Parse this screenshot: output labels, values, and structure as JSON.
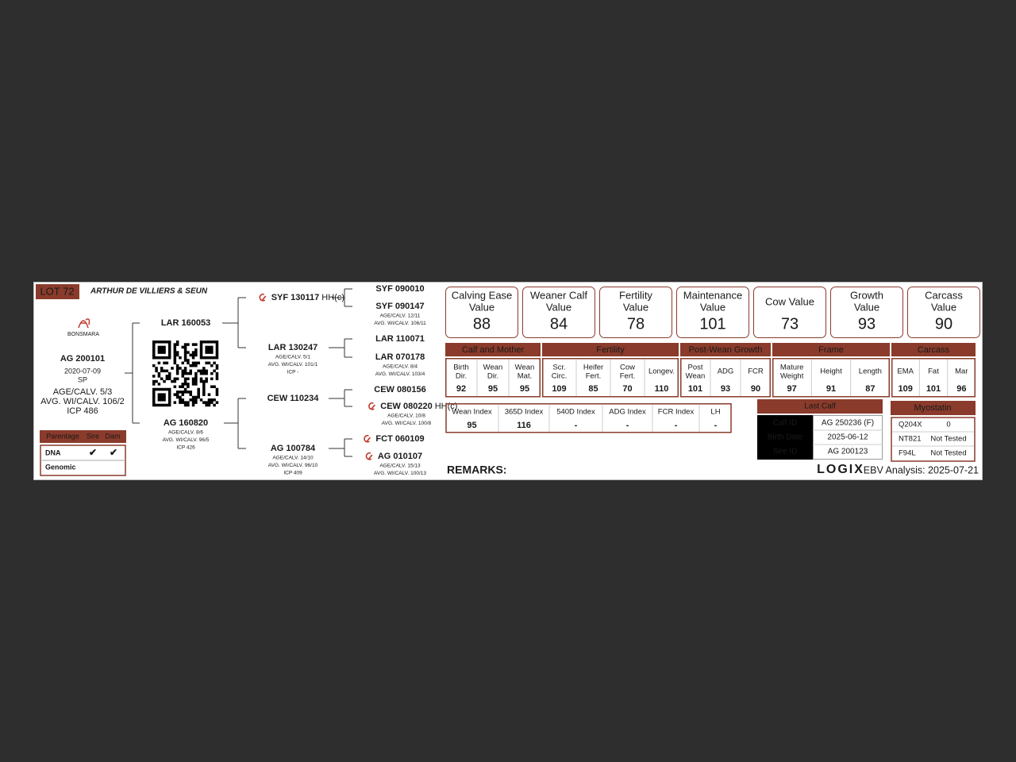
{
  "header": {
    "lot": "LOT 72",
    "breeder": "ARTHUR DE VILLIERS & SEUN",
    "breed_logo": "BONSMARA"
  },
  "animal": {
    "id": "AG 200101",
    "lines": [
      "2020-07-09",
      "SP",
      "AGE/CALV. 5/3",
      "AVG. WI/CALV. 106/2",
      "ICP 486"
    ]
  },
  "parentage": {
    "headers": [
      "Parentage",
      "Sire",
      "Dam"
    ],
    "rows": [
      [
        "DNA",
        "✔",
        "✔"
      ],
      [
        "Genomic"
      ]
    ]
  },
  "pedigree": {
    "parents": [
      {
        "id": "LAR 160053"
      },
      {
        "id": "AG 160820",
        "lines": [
          "AGE/CALV. 8/6",
          "AVG. WI/CALV. 96/5",
          "ICP 426"
        ]
      }
    ],
    "grandparents": [
      {
        "id": "SYF 130117",
        "tag": "HH(c)"
      },
      {
        "id": "LAR 130247",
        "lines": [
          "AGE/CALV. 5/1",
          "AVG. WI/CALV. 101/1",
          "ICP -"
        ]
      },
      {
        "id": "CEW 110234"
      },
      {
        "id": "AG 100784",
        "lines": [
          "AGE/CALV. 14/10",
          "AVG. WI/CALV. 96/10",
          "ICP 409"
        ]
      }
    ],
    "great_grandparents": [
      {
        "id": "SYF 090010"
      },
      {
        "id": "SYF 090147",
        "lines": [
          "AGE/CALV. 12/11",
          "AVG. WI/CALV. 106/11"
        ]
      },
      {
        "id": "LAR 110071"
      },
      {
        "id": "LAR 070178",
        "lines": [
          "AGE/CALV. 8/4",
          "AVG. WI/CALV. 103/4"
        ]
      },
      {
        "id": "CEW 080156"
      },
      {
        "id": "CEW 080220",
        "tag": "HH(c)",
        "lines": [
          "AGE/CALV. 10/8",
          "AVG. WI/CALV. 100/8"
        ]
      },
      {
        "id": "FCT 060109"
      },
      {
        "id": "AG 010107",
        "lines": [
          "AGE/CALV. 15/13",
          "AVG. WI/CALV. 100/13"
        ]
      }
    ]
  },
  "values": [
    {
      "label": [
        "Calving Ease",
        "Value"
      ],
      "value": 88
    },
    {
      "label": [
        "Weaner Calf",
        "Value"
      ],
      "value": 84
    },
    {
      "label": [
        "Fertility",
        "Value"
      ],
      "value": 78
    },
    {
      "label": [
        "Maintenance",
        "Value"
      ],
      "value": 101
    },
    {
      "label": [
        "Cow Value"
      ],
      "value": 73
    },
    {
      "label": [
        "Growth",
        "Value"
      ],
      "value": 93
    },
    {
      "label": [
        "Carcass",
        "Value"
      ],
      "value": 90
    }
  ],
  "ebv": {
    "groups": [
      {
        "name": "Calf and Mother",
        "traits": [
          {
            "label": [
              "Birth",
              "Dir."
            ],
            "value": 92
          },
          {
            "label": [
              "Wean",
              "Dir."
            ],
            "value": 95
          },
          {
            "label": [
              "Wean",
              "Mat."
            ],
            "value": 95
          }
        ]
      },
      {
        "name": "Fertility",
        "traits": [
          {
            "label": [
              "Scr.",
              "Circ."
            ],
            "value": 109
          },
          {
            "label": [
              "Heifer",
              "Fert."
            ],
            "value": 85
          },
          {
            "label": [
              "Cow",
              "Fert."
            ],
            "value": 70
          },
          {
            "label": [
              "Longev."
            ],
            "value": 110
          }
        ]
      },
      {
        "name": "Post-Wean Growth",
        "traits": [
          {
            "label": [
              "Post",
              "Wean"
            ],
            "value": 101
          },
          {
            "label": [
              "ADG"
            ],
            "value": 93
          },
          {
            "label": [
              "FCR"
            ],
            "value": 90
          }
        ]
      },
      {
        "name": "Frame",
        "traits": [
          {
            "label": [
              "Mature",
              "Weight"
            ],
            "value": 97
          },
          {
            "label": [
              "Height"
            ],
            "value": 91
          },
          {
            "label": [
              "Length"
            ],
            "value": 87
          }
        ]
      },
      {
        "name": "Carcass",
        "traits": [
          {
            "label": [
              "EMA"
            ],
            "value": 109
          },
          {
            "label": [
              "Fat"
            ],
            "value": 101
          },
          {
            "label": [
              "Mar"
            ],
            "value": 96
          }
        ]
      }
    ]
  },
  "indexes": [
    {
      "label": "Wean Index",
      "value": 95
    },
    {
      "label": "365D Index",
      "value": 116
    },
    {
      "label": "540D Index",
      "value": "-"
    },
    {
      "label": "ADG Index",
      "value": "-"
    },
    {
      "label": "FCR Index",
      "value": "-"
    },
    {
      "label": "LH",
      "value": "-"
    }
  ],
  "last_calf": {
    "title": "Last Calf",
    "rows": [
      [
        "Calf ID",
        "AG 250236 (F)"
      ],
      [
        "Birth Date",
        "2025-06-12"
      ],
      [
        "Sire ID",
        "AG 200123"
      ]
    ]
  },
  "myostatin": {
    "title": "Myostatin",
    "rows": [
      [
        "Q204X",
        0
      ],
      [
        "NT821",
        "Not Tested"
      ],
      [
        "F94L",
        "Not Tested"
      ]
    ]
  },
  "footer": {
    "remarks": "REMARKS:",
    "logo": "LOGIX",
    "analysis": "EBV Analysis: 2025-07-21"
  }
}
